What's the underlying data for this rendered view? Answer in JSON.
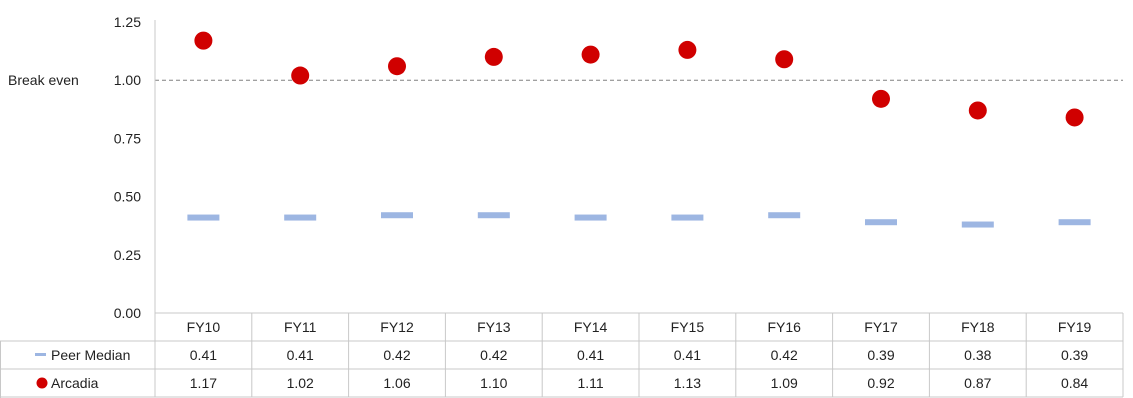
{
  "chart_data": {
    "type": "scatter",
    "categories": [
      "FY10",
      "FY11",
      "FY12",
      "FY13",
      "FY14",
      "FY15",
      "FY16",
      "FY17",
      "FY18",
      "FY19"
    ],
    "series": [
      {
        "name": "Peer Median",
        "marker": "dash",
        "color": "#9DB6E2",
        "values": [
          0.41,
          0.41,
          0.42,
          0.42,
          0.41,
          0.41,
          0.42,
          0.39,
          0.38,
          0.39
        ]
      },
      {
        "name": "Arcadia",
        "marker": "circle",
        "color": "#D00000",
        "values": [
          1.17,
          1.02,
          1.06,
          1.1,
          1.11,
          1.13,
          1.09,
          0.92,
          0.87,
          0.84
        ]
      }
    ],
    "display_values": {
      "Peer Median": [
        "0.41",
        "0.41",
        "0.42",
        "0.42",
        "0.41",
        "0.41",
        "0.42",
        "0.39",
        "0.38",
        "0.39"
      ],
      "Arcadia": [
        "1.17",
        "1.02",
        "1.06",
        "1.10",
        "1.11",
        "1.13",
        "1.09",
        "0.92",
        "0.87",
        "0.84"
      ]
    },
    "yticks": [
      "0.00",
      "0.25",
      "0.50",
      "0.75",
      "1.00",
      "1.25"
    ],
    "ylim": [
      0,
      1.25
    ],
    "reference_line": {
      "value": 1.0,
      "label": "Break even",
      "style": "dashed",
      "color": "#808080"
    },
    "data_table": true,
    "grid": false,
    "title": "",
    "xlabel": "",
    "ylabel": ""
  }
}
